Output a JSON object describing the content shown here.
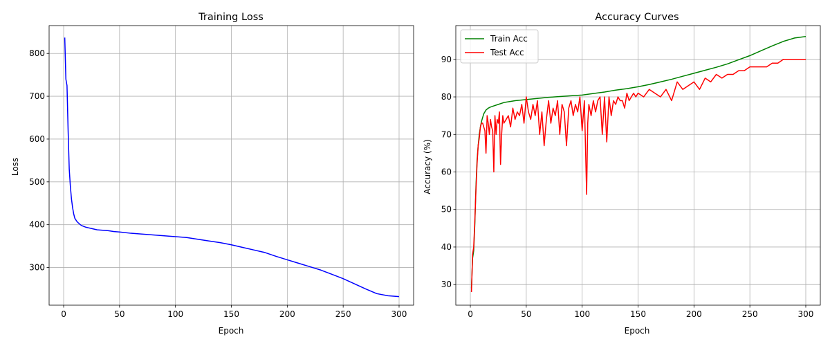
{
  "chart_data": [
    {
      "type": "line",
      "title": "Training Loss",
      "xlabel": "Epoch",
      "ylabel": "Loss",
      "xlim": [
        -13,
        313
      ],
      "ylim": [
        212,
        865
      ],
      "xticks": [
        0,
        50,
        100,
        150,
        200,
        250,
        300
      ],
      "yticks": [
        300,
        400,
        500,
        600,
        700,
        800
      ],
      "grid": true,
      "legend": null,
      "series": [
        {
          "color": "#0000ff",
          "x": [
            1,
            2,
            3,
            4,
            5,
            6,
            7,
            8,
            9,
            10,
            12,
            14,
            16,
            18,
            20,
            25,
            30,
            35,
            40,
            45,
            50,
            60,
            70,
            80,
            90,
            100,
            110,
            120,
            130,
            140,
            150,
            160,
            170,
            180,
            190,
            200,
            210,
            220,
            230,
            240,
            250,
            260,
            270,
            280,
            290,
            300
          ],
          "y": [
            837,
            740,
            725,
            620,
            530,
            490,
            460,
            440,
            425,
            415,
            407,
            402,
            398,
            396,
            394,
            391,
            388,
            387,
            386,
            384,
            383,
            380,
            378,
            376,
            374,
            372,
            370,
            366,
            362,
            358,
            353,
            347,
            341,
            335,
            326,
            318,
            310,
            302,
            294,
            284,
            274,
            262,
            250,
            239,
            234,
            232
          ]
        }
      ]
    },
    {
      "type": "line",
      "title": "Accuracy Curves",
      "xlabel": "Epoch",
      "ylabel": "Accuracy (%)",
      "xlim": [
        -13,
        313
      ],
      "ylim": [
        24.5,
        99
      ],
      "xticks": [
        0,
        50,
        100,
        150,
        200,
        250,
        300
      ],
      "yticks": [
        30,
        40,
        50,
        60,
        70,
        80,
        90
      ],
      "grid": true,
      "legend": "top-left",
      "series": [
        {
          "name": "Train Acc",
          "color": "#008000",
          "x": [
            1,
            2,
            3,
            4,
            5,
            6,
            7,
            8,
            9,
            10,
            12,
            14,
            16,
            18,
            20,
            25,
            30,
            40,
            50,
            60,
            70,
            80,
            90,
            100,
            110,
            120,
            130,
            140,
            150,
            160,
            170,
            180,
            190,
            200,
            210,
            220,
            230,
            240,
            250,
            260,
            270,
            280,
            290,
            300
          ],
          "y": [
            29,
            37,
            39,
            46,
            56,
            63,
            67,
            70,
            72,
            73.5,
            75.5,
            76.5,
            77,
            77.3,
            77.5,
            78,
            78.5,
            79,
            79.3,
            79.6,
            79.9,
            80.1,
            80.3,
            80.5,
            80.9,
            81.3,
            81.8,
            82.2,
            82.7,
            83.3,
            84,
            84.7,
            85.5,
            86.3,
            87.1,
            87.9,
            88.8,
            89.9,
            91,
            92.3,
            93.6,
            94.8,
            95.7,
            96.1
          ]
        },
        {
          "name": "Test Acc",
          "color": "#ff0000",
          "x": [
            1,
            2,
            3,
            4,
            5,
            6,
            7,
            8,
            9,
            10,
            11,
            12,
            13,
            14,
            15,
            16,
            17,
            18,
            19,
            20,
            21,
            22,
            23,
            24,
            25,
            26,
            27,
            28,
            29,
            30,
            32,
            34,
            36,
            38,
            40,
            42,
            44,
            46,
            48,
            50,
            52,
            54,
            56,
            58,
            60,
            62,
            64,
            66,
            68,
            70,
            72,
            74,
            76,
            78,
            80,
            82,
            84,
            86,
            88,
            90,
            92,
            94,
            96,
            98,
            100,
            102,
            104,
            105,
            106,
            108,
            110,
            112,
            114,
            116,
            118,
            120,
            122,
            124,
            126,
            128,
            130,
            132,
            134,
            136,
            138,
            140,
            142,
            144,
            146,
            148,
            150,
            155,
            160,
            165,
            170,
            175,
            180,
            185,
            190,
            195,
            200,
            205,
            210,
            215,
            220,
            225,
            230,
            235,
            240,
            245,
            250,
            255,
            260,
            265,
            270,
            275,
            280,
            285,
            290,
            295,
            300
          ],
          "y": [
            28,
            38,
            40,
            47,
            55,
            62,
            67,
            69,
            72,
            73,
            73,
            72,
            71,
            65,
            75,
            73,
            70,
            74,
            72,
            71,
            60,
            75,
            70,
            74,
            73,
            76,
            62,
            70,
            75,
            73,
            74,
            75,
            72,
            77,
            74,
            76,
            75,
            78,
            73,
            80,
            76,
            74,
            78,
            75,
            79,
            70,
            76,
            67,
            74,
            79,
            73,
            77,
            75,
            79,
            70,
            78,
            76,
            67,
            77,
            79,
            75,
            78,
            76,
            80,
            71,
            79,
            54,
            73,
            78,
            75,
            79,
            76,
            79,
            80,
            70,
            80,
            68,
            80,
            75,
            79,
            78,
            80,
            79,
            79,
            77,
            81,
            79,
            80,
            81,
            80,
            81,
            80,
            82,
            81,
            80,
            82,
            79,
            84,
            82,
            83,
            84,
            82,
            85,
            84,
            86,
            85,
            86,
            86,
            87,
            87,
            88,
            88,
            88,
            88,
            89,
            89,
            90,
            90,
            90,
            90,
            90
          ]
        }
      ]
    }
  ]
}
